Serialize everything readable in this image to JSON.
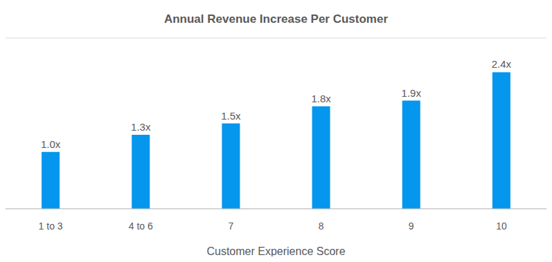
{
  "chart_data": {
    "type": "bar",
    "title": "Annual Revenue Increase Per Customer",
    "x_label": "Customer Experience Score",
    "categories": [
      "1 to 3",
      "4 to 6",
      "7",
      "8",
      "9",
      "10"
    ],
    "values": [
      1.0,
      1.3,
      1.5,
      1.8,
      1.9,
      2.4
    ],
    "value_labels": [
      "1.0x",
      "1.3x",
      "1.5x",
      "1.8x",
      "1.9x",
      "2.4x"
    ],
    "color": "#0596ee",
    "ylim": [
      0,
      3
    ],
    "yticks": [
      0,
      0.5,
      1,
      1.5,
      2,
      2.5,
      3
    ],
    "grid": true,
    "data_labels": true,
    "tick_labels": "x"
  }
}
